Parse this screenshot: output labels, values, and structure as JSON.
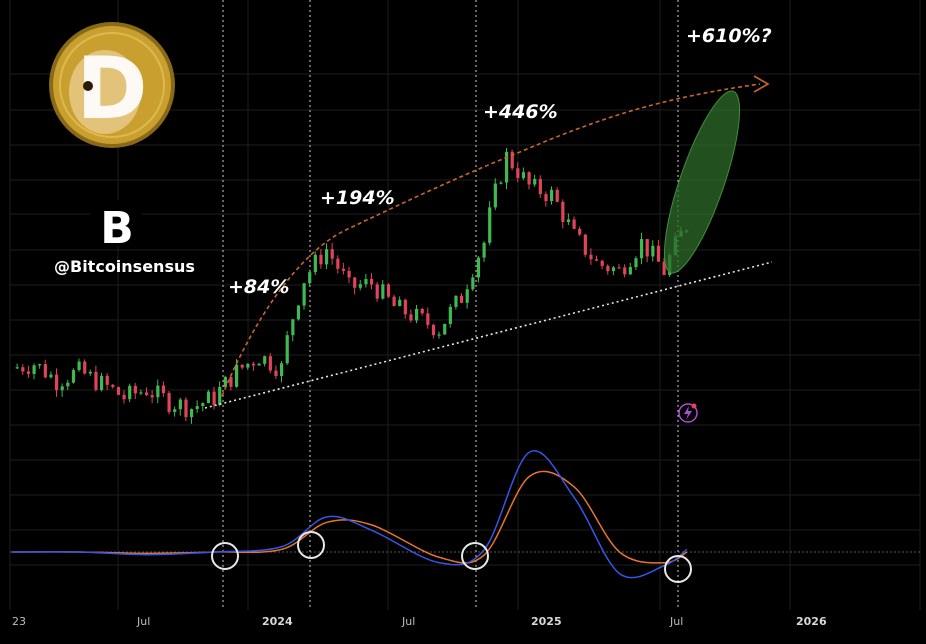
{
  "brand": {
    "handle": "@Bitcoinsensus",
    "logo_letter": "B",
    "coin_letter": "D",
    "coin_name": "dogecoin-logo-icon"
  },
  "colors": {
    "background": "#000000",
    "bull": "#3fb950",
    "bear": "#e0435a",
    "macd": "#3656e6",
    "signal": "#e8742c",
    "arc": "#c8652c",
    "projection": "#2e6b2a",
    "support": "#e6e6e6",
    "grid": "#1e1e1e",
    "coin_gold": "#c9a030"
  },
  "chart_data": {
    "type": "candlestick",
    "price_scale": "log",
    "x_ticks": [
      "23",
      "Jul",
      "2024",
      "Jul",
      "2025",
      "Jul",
      "2026"
    ],
    "annotations": [
      {
        "text": "+84%",
        "date": "2023-10"
      },
      {
        "text": "+194%",
        "date": "2024-01"
      },
      {
        "text": "+446%",
        "date": "2024-09"
      },
      {
        "text": "+610%?",
        "date": "2025-07"
      }
    ],
    "cycle_markers": [
      "2023-10",
      "2024-01",
      "2024-09",
      "2025-07"
    ],
    "series": [
      {
        "name": "price",
        "x": [
          "2023-01",
          "2023-02",
          "2023-03",
          "2023-04",
          "2023-05",
          "2023-06",
          "2023-07",
          "2023-08",
          "2023-09",
          "2023-10",
          "2023-11",
          "2023-12",
          "2024-01",
          "2024-02",
          "2024-03",
          "2024-04",
          "2024-05",
          "2024-06",
          "2024-07",
          "2024-08",
          "2024-09",
          "2024-10",
          "2024-11",
          "2024-12",
          "2025-01",
          "2025-02",
          "2025-03",
          "2025-04",
          "2025-05",
          "2025-06",
          "2025-07"
        ],
        "values": [
          0.082,
          0.085,
          0.075,
          0.08,
          0.073,
          0.066,
          0.07,
          0.064,
          0.061,
          0.066,
          0.08,
          0.09,
          0.082,
          0.16,
          0.2,
          0.15,
          0.155,
          0.13,
          0.12,
          0.11,
          0.14,
          0.21,
          0.4,
          0.32,
          0.3,
          0.22,
          0.18,
          0.17,
          0.21,
          0.17,
          0.24
        ]
      },
      {
        "name": "macd",
        "x": [
          "2023-01",
          "2023-04",
          "2023-07",
          "2023-10",
          "2024-01",
          "2024-03",
          "2024-05",
          "2024-08",
          "2024-10",
          "2024-12",
          "2025-02",
          "2025-04",
          "2025-06",
          "2025-07"
        ],
        "values": [
          0.0,
          0.0,
          -0.1,
          0.0,
          0.2,
          1.3,
          0.8,
          -0.4,
          0.1,
          3.7,
          2.0,
          -0.8,
          -0.5,
          0.1
        ]
      },
      {
        "name": "signal",
        "x": [
          "2023-01",
          "2023-04",
          "2023-07",
          "2023-10",
          "2024-01",
          "2024-03",
          "2024-05",
          "2024-08",
          "2024-10",
          "2024-12",
          "2025-02",
          "2025-04",
          "2025-06",
          "2025-07"
        ],
        "values": [
          0.0,
          0.0,
          -0.05,
          0.0,
          0.1,
          1.1,
          1.0,
          -0.2,
          -0.1,
          2.8,
          2.4,
          0.0,
          -0.4,
          0.0
        ]
      }
    ]
  }
}
